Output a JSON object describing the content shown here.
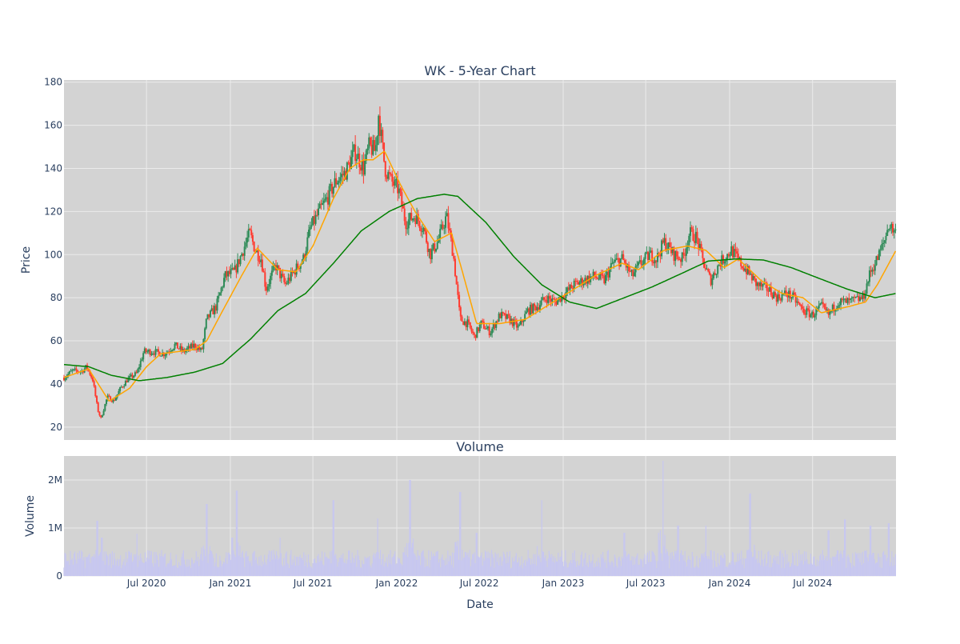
{
  "colors": {
    "plot_bg": "#d3d3d3",
    "grid": "#ebebeb",
    "text": "#2a3f5f",
    "up": "#2e8b57",
    "down": "#ff3b30",
    "ma_fast": "#ffa500",
    "ma_slow": "#008000",
    "volume": "#c7c7f0"
  },
  "chart_data": [
    {
      "type": "candlestick",
      "title": "WK - 5-Year Chart",
      "xlabel": "",
      "ylabel": "Price",
      "xlim": [
        "2020-01-02",
        "2024-12-31"
      ],
      "ylim": [
        14,
        181
      ],
      "grid": true,
      "y_ticks": [
        20,
        40,
        60,
        80,
        100,
        120,
        140,
        160,
        180
      ],
      "price_path": [
        [
          "2020-01-02",
          43
        ],
        [
          "2020-01-20",
          46
        ],
        [
          "2020-02-10",
          46
        ],
        [
          "2020-02-21",
          48
        ],
        [
          "2020-03-05",
          42
        ],
        [
          "2020-03-16",
          28
        ],
        [
          "2020-03-23",
          24
        ],
        [
          "2020-04-06",
          34
        ],
        [
          "2020-04-20",
          32
        ],
        [
          "2020-05-05",
          38
        ],
        [
          "2020-05-20",
          42
        ],
        [
          "2020-06-10",
          45
        ],
        [
          "2020-06-25",
          55
        ],
        [
          "2020-07-15",
          55
        ],
        [
          "2020-08-10",
          54
        ],
        [
          "2020-09-01",
          58
        ],
        [
          "2020-09-20",
          55
        ],
        [
          "2020-10-15",
          58
        ],
        [
          "2020-10-30",
          55
        ],
        [
          "2020-11-10",
          70
        ],
        [
          "2020-12-01",
          76
        ],
        [
          "2020-12-20",
          90
        ],
        [
          "2021-01-10",
          92
        ],
        [
          "2021-01-25",
          100
        ],
        [
          "2021-02-12",
          110
        ],
        [
          "2021-02-25",
          102
        ],
        [
          "2021-03-10",
          98
        ],
        [
          "2021-03-20",
          84
        ],
        [
          "2021-04-10",
          95
        ],
        [
          "2021-05-01",
          86
        ],
        [
          "2021-05-20",
          92
        ],
        [
          "2021-06-10",
          98
        ],
        [
          "2021-06-25",
          112
        ],
        [
          "2021-07-15",
          120
        ],
        [
          "2021-08-01",
          126
        ],
        [
          "2021-08-20",
          134
        ],
        [
          "2021-09-10",
          138
        ],
        [
          "2021-10-01",
          148
        ],
        [
          "2021-10-20",
          140
        ],
        [
          "2021-11-01",
          150
        ],
        [
          "2021-11-15",
          148
        ],
        [
          "2021-11-22",
          165
        ],
        [
          "2021-12-06",
          140
        ],
        [
          "2021-12-20",
          134
        ],
        [
          "2022-01-05",
          130
        ],
        [
          "2022-01-20",
          115
        ],
        [
          "2022-02-10",
          118
        ],
        [
          "2022-03-01",
          112
        ],
        [
          "2022-03-15",
          100
        ],
        [
          "2022-04-01",
          106
        ],
        [
          "2022-04-20",
          118
        ],
        [
          "2022-05-05",
          100
        ],
        [
          "2022-05-20",
          70
        ],
        [
          "2022-06-05",
          68
        ],
        [
          "2022-06-20",
          62
        ],
        [
          "2022-07-05",
          68
        ],
        [
          "2022-07-25",
          64
        ],
        [
          "2022-08-15",
          72
        ],
        [
          "2022-09-05",
          70
        ],
        [
          "2022-09-25",
          66
        ],
        [
          "2022-10-15",
          74
        ],
        [
          "2022-11-05",
          76
        ],
        [
          "2022-11-25",
          80
        ],
        [
          "2022-12-15",
          78
        ],
        [
          "2023-01-05",
          82
        ],
        [
          "2023-01-25",
          86
        ],
        [
          "2023-02-15",
          88
        ],
        [
          "2023-03-10",
          90
        ],
        [
          "2023-04-01",
          88
        ],
        [
          "2023-04-20",
          96
        ],
        [
          "2023-05-10",
          98
        ],
        [
          "2023-06-01",
          90
        ],
        [
          "2023-06-20",
          96
        ],
        [
          "2023-07-10",
          100
        ],
        [
          "2023-07-25",
          98
        ],
        [
          "2023-08-10",
          106
        ],
        [
          "2023-09-01",
          100
        ],
        [
          "2023-09-20",
          98
        ],
        [
          "2023-10-05",
          110
        ],
        [
          "2023-10-20",
          108
        ],
        [
          "2023-11-05",
          96
        ],
        [
          "2023-11-20",
          88
        ],
        [
          "2023-12-10",
          96
        ],
        [
          "2024-01-05",
          102
        ],
        [
          "2024-01-25",
          96
        ],
        [
          "2024-02-10",
          92
        ],
        [
          "2024-03-01",
          86
        ],
        [
          "2024-03-25",
          84
        ],
        [
          "2024-04-15",
          80
        ],
        [
          "2024-05-05",
          82
        ],
        [
          "2024-05-20",
          80
        ],
        [
          "2024-06-10",
          74
        ],
        [
          "2024-07-01",
          72
        ],
        [
          "2024-07-20",
          76
        ],
        [
          "2024-08-05",
          72
        ],
        [
          "2024-08-25",
          78
        ],
        [
          "2024-09-20",
          78
        ],
        [
          "2024-10-20",
          80
        ],
        [
          "2024-11-05",
          92
        ],
        [
          "2024-11-20",
          98
        ],
        [
          "2024-12-05",
          106
        ],
        [
          "2024-12-15",
          114
        ],
        [
          "2024-12-31",
          110
        ]
      ],
      "moving_averages": [
        {
          "color_key": "ma_fast",
          "values": [
            [
              "2020-01-02",
              43
            ],
            [
              "2020-02-25",
              47
            ],
            [
              "2020-04-10",
              32
            ],
            [
              "2020-05-25",
              38
            ],
            [
              "2020-07-01",
              48
            ],
            [
              "2020-08-01",
              54
            ],
            [
              "2020-10-15",
              56
            ],
            [
              "2020-11-10",
              60
            ],
            [
              "2020-12-10",
              72
            ],
            [
              "2021-01-25",
              90
            ],
            [
              "2021-03-01",
              103
            ],
            [
              "2021-04-15",
              93
            ],
            [
              "2021-05-25",
              92
            ],
            [
              "2021-07-01",
              104
            ],
            [
              "2021-08-15",
              126
            ],
            [
              "2021-09-20",
              140
            ],
            [
              "2021-10-20",
              144
            ],
            [
              "2021-11-10",
              144
            ],
            [
              "2021-12-05",
              148
            ],
            [
              "2022-01-10",
              132
            ],
            [
              "2022-02-10",
              120
            ],
            [
              "2022-03-25",
              106
            ],
            [
              "2022-05-01",
              110
            ],
            [
              "2022-05-25",
              92
            ],
            [
              "2022-06-25",
              68
            ],
            [
              "2022-08-15",
              68
            ],
            [
              "2022-10-10",
              70
            ],
            [
              "2022-11-25",
              76
            ],
            [
              "2023-01-25",
              84
            ],
            [
              "2023-03-10",
              90
            ],
            [
              "2023-05-10",
              96
            ],
            [
              "2023-06-15",
              93
            ],
            [
              "2023-08-10",
              102
            ],
            [
              "2023-10-01",
              104
            ],
            [
              "2023-11-10",
              102
            ],
            [
              "2023-12-20",
              94
            ],
            [
              "2024-01-20",
              98
            ],
            [
              "2024-03-10",
              88
            ],
            [
              "2024-04-25",
              82
            ],
            [
              "2024-06-10",
              80
            ],
            [
              "2024-07-20",
              73
            ],
            [
              "2024-09-20",
              76
            ],
            [
              "2024-10-25",
              78
            ],
            [
              "2024-11-20",
              86
            ],
            [
              "2024-12-31",
              102
            ]
          ]
        },
        {
          "color_key": "ma_slow",
          "values": [
            [
              "2020-01-02",
              49
            ],
            [
              "2020-02-25",
              48
            ],
            [
              "2020-04-15",
              44
            ],
            [
              "2020-06-15",
              41.5
            ],
            [
              "2020-08-15",
              43
            ],
            [
              "2020-10-15",
              45.5
            ],
            [
              "2020-12-15",
              49.5
            ],
            [
              "2021-02-15",
              61
            ],
            [
              "2021-04-15",
              74
            ],
            [
              "2021-06-15",
              82
            ],
            [
              "2021-08-15",
              96
            ],
            [
              "2021-10-15",
              111
            ],
            [
              "2021-12-15",
              120
            ],
            [
              "2022-02-15",
              126
            ],
            [
              "2022-04-15",
              128
            ],
            [
              "2022-05-15",
              127
            ],
            [
              "2022-07-15",
              115
            ],
            [
              "2022-09-15",
              99
            ],
            [
              "2022-11-15",
              86
            ],
            [
              "2023-01-15",
              78
            ],
            [
              "2023-03-15",
              75
            ],
            [
              "2023-05-15",
              80
            ],
            [
              "2023-07-15",
              85
            ],
            [
              "2023-09-15",
              91
            ],
            [
              "2023-11-15",
              97
            ],
            [
              "2024-01-15",
              98
            ],
            [
              "2024-03-15",
              97.5
            ],
            [
              "2024-05-15",
              94
            ],
            [
              "2024-07-15",
              89
            ],
            [
              "2024-09-15",
              84
            ],
            [
              "2024-11-15",
              80
            ],
            [
              "2024-12-31",
              82
            ]
          ]
        }
      ]
    },
    {
      "type": "bar",
      "title": "Volume",
      "xlabel": "Date",
      "ylabel": "Volume",
      "ylim": [
        0,
        2500000
      ],
      "grid": true,
      "y_ticks": [
        0,
        1000000,
        2000000
      ],
      "y_tick_labels": [
        "0",
        "1M",
        "2M"
      ],
      "x_ticks": [
        "2020-07-01",
        "2021-01-01",
        "2021-07-01",
        "2022-01-01",
        "2022-07-01",
        "2023-01-01",
        "2023-07-01",
        "2024-01-01",
        "2024-07-01"
      ],
      "x_tick_labels": [
        "Jul 2020",
        "Jan 2021",
        "Jul 2021",
        "Jan 2022",
        "Jul 2022",
        "Jan 2023",
        "Jul 2023",
        "Jan 2024",
        "Jul 2024"
      ],
      "baseline_volume": 320000,
      "spikes": [
        [
          "2020-03-15",
          1150000
        ],
        [
          "2020-03-25",
          800000
        ],
        [
          "2020-06-10",
          880000
        ],
        [
          "2020-11-10",
          1500000
        ],
        [
          "2021-01-05",
          800000
        ],
        [
          "2021-01-15",
          1780000
        ],
        [
          "2021-04-20",
          800000
        ],
        [
          "2021-08-15",
          1580000
        ],
        [
          "2021-11-20",
          1200000
        ],
        [
          "2022-01-30",
          2000000
        ],
        [
          "2022-05-20",
          1750000
        ],
        [
          "2022-06-25",
          900000
        ],
        [
          "2022-11-15",
          1580000
        ],
        [
          "2023-05-15",
          900000
        ],
        [
          "2023-08-08",
          2400000
        ],
        [
          "2023-09-10",
          1050000
        ],
        [
          "2023-11-10",
          1050000
        ],
        [
          "2024-02-15",
          1720000
        ],
        [
          "2024-08-05",
          950000
        ],
        [
          "2024-09-10",
          1180000
        ],
        [
          "2024-11-05",
          1050000
        ],
        [
          "2024-12-15",
          1100000
        ]
      ]
    }
  ]
}
